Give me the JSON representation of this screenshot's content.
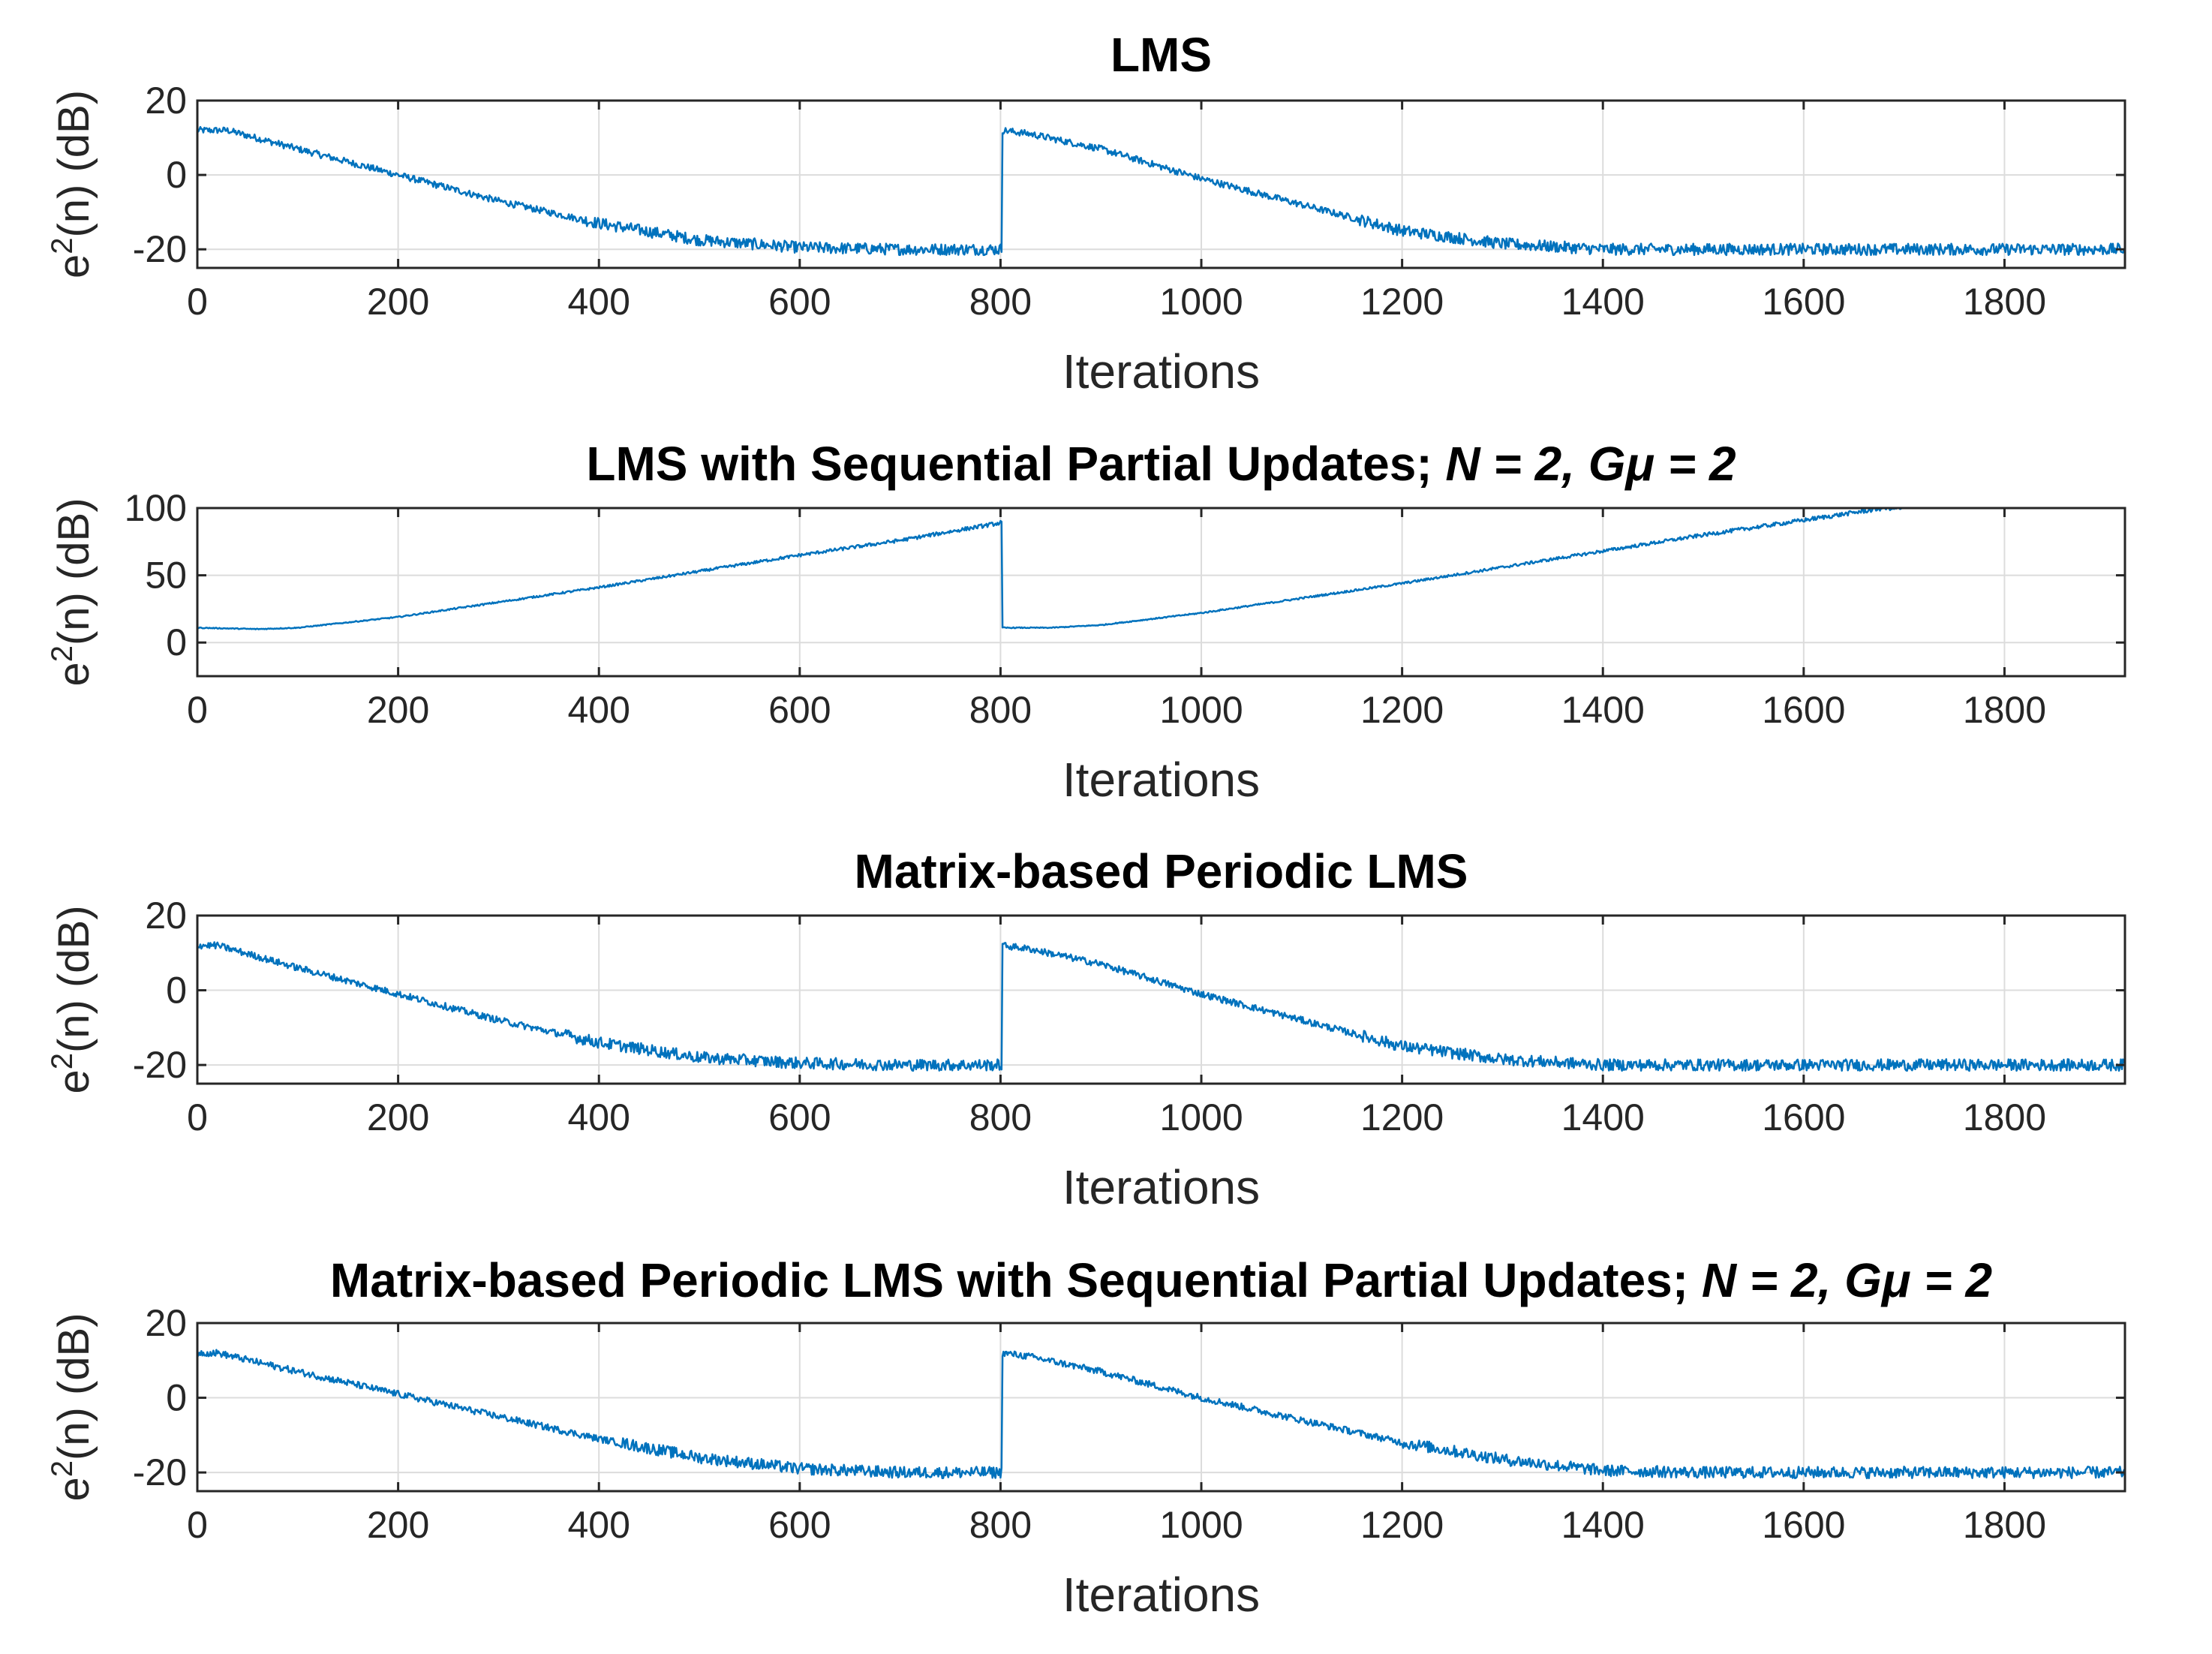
{
  "colors": {
    "series": "#0072BD",
    "axis": "#262626",
    "grid": "#dcdcdc"
  },
  "chart_data": [
    {
      "type": "line",
      "title": "LMS",
      "title_italic": "",
      "xlabel": "Iterations",
      "ylabel": {
        "base": "e",
        "sup": "2",
        "rest": "(n) (dB)"
      },
      "xlim": [
        0,
        1920
      ],
      "ylim": [
        -25,
        20
      ],
      "xticks": [
        0,
        200,
        400,
        600,
        800,
        1000,
        1200,
        1400,
        1600,
        1800
      ],
      "yticks": [
        20,
        0,
        -20
      ],
      "grid": true,
      "series": [
        {
          "name": "e^2(n)",
          "noise": 1.3,
          "x": [
            0,
            30,
            100,
            200,
            300,
            400,
            500,
            600,
            700,
            800,
            802,
            830,
            900,
            1000,
            1100,
            1200,
            1300,
            1400,
            1500,
            1600,
            1700,
            1800,
            1920
          ],
          "y": [
            12,
            12,
            7,
            0,
            -7,
            -13,
            -17.5,
            -19.5,
            -20,
            -20,
            12,
            11,
            7,
            -1,
            -8,
            -15,
            -18.5,
            -20,
            -20,
            -20,
            -20,
            -20,
            -20
          ]
        }
      ]
    },
    {
      "type": "line",
      "title": "LMS with Sequential Partial Updates; ",
      "title_italic": "N = 2, Gμ = 2",
      "xlabel": "Iterations",
      "ylabel": {
        "base": "e",
        "sup": "2",
        "rest": "(n) (dB)"
      },
      "xlim": [
        0,
        1920
      ],
      "ylim": [
        -25,
        100
      ],
      "xticks": [
        0,
        200,
        400,
        600,
        800,
        1000,
        1200,
        1400,
        1600,
        1800
      ],
      "yticks": [
        100,
        50,
        0
      ],
      "grid": true,
      "series": [
        {
          "name": "e^2(n)",
          "noise": 0.6,
          "x": [
            0,
            60,
            100,
            200,
            300,
            400,
            500,
            600,
            700,
            800,
            802,
            850,
            900,
            1000,
            1100,
            1200,
            1300,
            1400,
            1500,
            1600,
            1680,
            1710
          ],
          "y": [
            11,
            10,
            11,
            19,
            30,
            41,
            53,
            65,
            76,
            89,
            11,
            11,
            13,
            22,
            33,
            44,
            56,
            68,
            80,
            91,
            100,
            100
          ]
        }
      ]
    },
    {
      "type": "line",
      "title": "Matrix-based Periodic LMS",
      "title_italic": "",
      "xlabel": "Iterations",
      "ylabel": {
        "base": "e",
        "sup": "2",
        "rest": "(n) (dB)"
      },
      "xlim": [
        0,
        1920
      ],
      "ylim": [
        -25,
        20
      ],
      "xticks": [
        0,
        200,
        400,
        600,
        800,
        1000,
        1200,
        1400,
        1600,
        1800
      ],
      "yticks": [
        20,
        0,
        -20
      ],
      "grid": true,
      "series": [
        {
          "name": "e^2(n)",
          "noise": 1.3,
          "x": [
            0,
            20,
            100,
            200,
            300,
            400,
            500,
            600,
            700,
            800,
            802,
            830,
            900,
            1000,
            1100,
            1200,
            1300,
            1400,
            1500,
            1600,
            1700,
            1800,
            1920
          ],
          "y": [
            12,
            12,
            6,
            -1,
            -8,
            -14,
            -18,
            -19.5,
            -20,
            -20,
            12,
            11,
            7,
            -1,
            -8,
            -15,
            -18.5,
            -20,
            -20,
            -20,
            -20,
            -20,
            -20
          ]
        }
      ]
    },
    {
      "type": "line",
      "title": "Matrix-based Periodic LMS with Sequential Partial Updates; ",
      "title_italic": "N = 2, Gμ = 2",
      "xlabel": "Iterations",
      "ylabel": {
        "base": "e",
        "sup": "2",
        "rest": "(n) (dB)"
      },
      "xlim": [
        0,
        1920
      ],
      "ylim": [
        -25,
        20
      ],
      "xticks": [
        0,
        200,
        400,
        600,
        800,
        1000,
        1200,
        1400,
        1600,
        1800
      ],
      "yticks": [
        20,
        0,
        -20
      ],
      "grid": true,
      "series": [
        {
          "name": "e^2(n)",
          "noise": 1.3,
          "x": [
            0,
            20,
            100,
            200,
            300,
            400,
            500,
            600,
            700,
            800,
            802,
            830,
            900,
            1000,
            1100,
            1200,
            1300,
            1400,
            1500,
            1600,
            1700,
            1800,
            1920
          ],
          "y": [
            12,
            12,
            7,
            1,
            -5,
            -11,
            -16,
            -19,
            -20,
            -20,
            12,
            11,
            7,
            0,
            -6,
            -12,
            -16.5,
            -19.5,
            -20,
            -20,
            -20,
            -20,
            -20
          ]
        }
      ]
    }
  ]
}
